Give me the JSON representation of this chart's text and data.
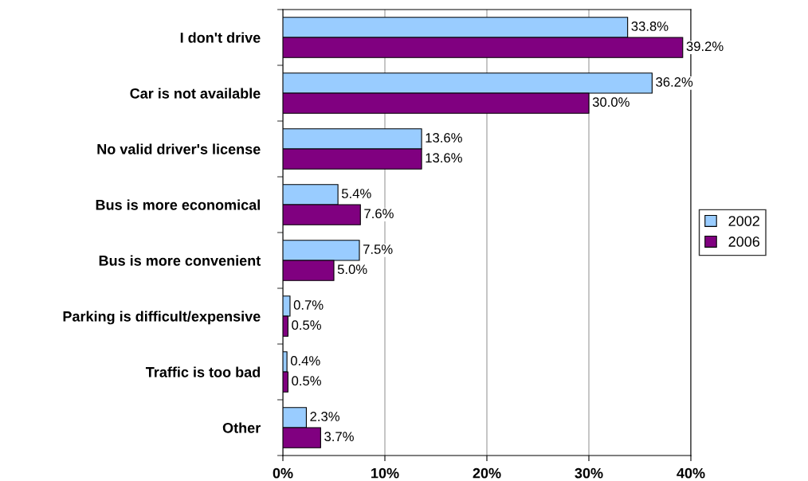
{
  "chart_data": {
    "type": "bar",
    "orientation": "horizontal",
    "categories": [
      "I don't drive",
      "Car is not available",
      "No valid driver's license",
      "Bus is more economical",
      "Bus is more convenient",
      "Parking is difficult/expensive",
      "Traffic is too bad",
      "Other"
    ],
    "series": [
      {
        "name": "2002",
        "color": "#99ccff",
        "values": [
          33.8,
          36.2,
          13.6,
          5.4,
          7.5,
          0.7,
          0.4,
          2.3
        ],
        "value_labels": [
          "33.8%",
          "36.2%",
          "13.6%",
          "5.4%",
          "7.5%",
          "0.7%",
          "0.4%",
          "2.3%"
        ]
      },
      {
        "name": "2006",
        "color": "#800080",
        "values": [
          39.2,
          30.0,
          13.6,
          7.6,
          5.0,
          0.5,
          0.5,
          3.7
        ],
        "value_labels": [
          "39.2%",
          "30.0%",
          "13.6%",
          "7.6%",
          "5.0%",
          "0.5%",
          "0.5%",
          "3.7%"
        ]
      }
    ],
    "xlim": [
      0,
      40
    ],
    "xticks": [
      {
        "value": 0,
        "label": "0%"
      },
      {
        "value": 10,
        "label": "10%"
      },
      {
        "value": 20,
        "label": "20%"
      },
      {
        "value": 30,
        "label": "30%"
      },
      {
        "value": 40,
        "label": "40%"
      }
    ],
    "grid": "x",
    "legend": "right"
  }
}
